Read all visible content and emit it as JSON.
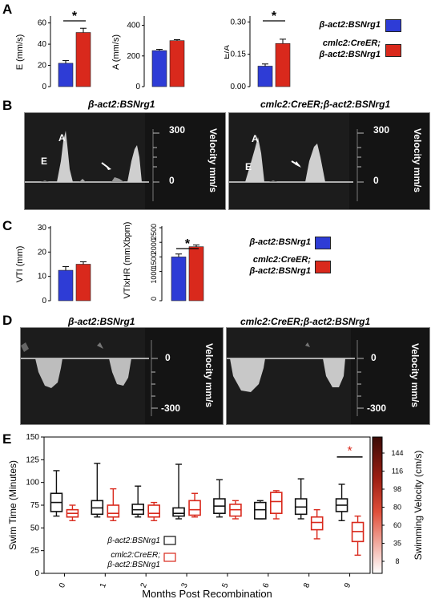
{
  "panel_labels": {
    "a": "A",
    "b": "B",
    "c": "C",
    "d": "D",
    "e": "E"
  },
  "genotypes": {
    "control": "β-act2:BSNrg1",
    "mutant_line1": "cmlc2:CreER;",
    "mutant_line2": "β-act2:BSNrg1",
    "mutant_full": "cmlc2:CreER;β-act2:BSNrg1"
  },
  "colors": {
    "control": "#2e3cd6",
    "mutant": "#d9291c",
    "box_control": "#111111",
    "box_mutant": "#d9291c",
    "significance": "#000000",
    "significance_e": "#d9291c"
  },
  "significance_mark": "*",
  "panel_a": {
    "charts": [
      {
        "ylabel": "E (mm/s)",
        "ticks": [
          "0",
          "20",
          "40",
          "60"
        ],
        "ylim": [
          0,
          65
        ],
        "values": [
          22,
          51
        ],
        "errors": [
          2.5,
          4
        ],
        "sig": true
      },
      {
        "ylabel": "A (mm/s)",
        "ticks": [
          "0",
          "200",
          "400"
        ],
        "ylim": [
          0,
          450
        ],
        "values": [
          235,
          300
        ],
        "errors": [
          8,
          6
        ],
        "sig": false
      },
      {
        "ylabel": "E/A",
        "ticks": [
          "0.00",
          "0.15",
          "0.30"
        ],
        "ylim": [
          0,
          0.32
        ],
        "values": [
          0.095,
          0.2
        ],
        "errors": [
          0.01,
          0.02
        ],
        "sig": true
      }
    ]
  },
  "panel_c": {
    "charts": [
      {
        "ylabel": "VTI (mm)",
        "ticks": [
          "0",
          "10",
          "20",
          "30"
        ],
        "ylim": [
          0,
          30
        ],
        "values": [
          12.5,
          15
        ],
        "errors": [
          1.5,
          1
        ],
        "sig": false
      },
      {
        "ylabel": "VTIxHR (mmXbpm)",
        "ticks": [
          "0",
          "1000",
          "1500",
          "2000",
          "2500"
        ],
        "ylim": [
          0,
          2500
        ],
        "values": [
          1500,
          1850
        ],
        "errors": [
          100,
          60
        ],
        "sig": true
      }
    ]
  },
  "panel_b": {
    "label_e": "E",
    "label_a": "A",
    "scale_top": "300",
    "scale_zero": "0",
    "velocity_label": "Velocity mm/s"
  },
  "panel_d": {
    "scale_zero": "0",
    "scale_bottom": "-300",
    "velocity_label": "Velocity mm/s"
  },
  "chart_data": {
    "type": "box",
    "title": "",
    "xlabel": "Months Post Recombination",
    "ylabel": "Swim Time (Minutes)",
    "ylim": [
      0,
      150
    ],
    "yticks": [
      0,
      25,
      50,
      75,
      100,
      125,
      150
    ],
    "categories": [
      "0",
      "1",
      "2",
      "3",
      "5",
      "6",
      "8",
      "9"
    ],
    "series": [
      {
        "name": "β-act2:BSNrg1",
        "boxes": [
          [
            63,
            68,
            78,
            88,
            113
          ],
          [
            62,
            65,
            72,
            80,
            121
          ],
          [
            62,
            65,
            70,
            76,
            96
          ],
          [
            60,
            63,
            66,
            72,
            120
          ],
          [
            62,
            66,
            74,
            82,
            103
          ],
          [
            62,
            60,
            70,
            78,
            80
          ],
          [
            60,
            65,
            73,
            82,
            104
          ],
          [
            58,
            68,
            75,
            82,
            98
          ]
        ]
      },
      {
        "name": "cmlc2:CreER;β-act2:BSNrg1",
        "boxes": [
          [
            58,
            62,
            66,
            70,
            75
          ],
          [
            58,
            62,
            66,
            75,
            93
          ],
          [
            58,
            62,
            66,
            75,
            78
          ],
          [
            62,
            64,
            70,
            80,
            88
          ],
          [
            60,
            63,
            70,
            76,
            80
          ],
          [
            60,
            66,
            79,
            89,
            91
          ],
          [
            38,
            48,
            56,
            62,
            70
          ],
          [
            20,
            35,
            46,
            56,
            63
          ]
        ]
      }
    ],
    "significance": {
      "category": "9",
      "mark": "*"
    },
    "colorbar": {
      "label": "Swimming Velocity (cm/s)",
      "ticks": [
        "8",
        "35",
        "60",
        "80",
        "98",
        "116",
        "144"
      ]
    }
  }
}
